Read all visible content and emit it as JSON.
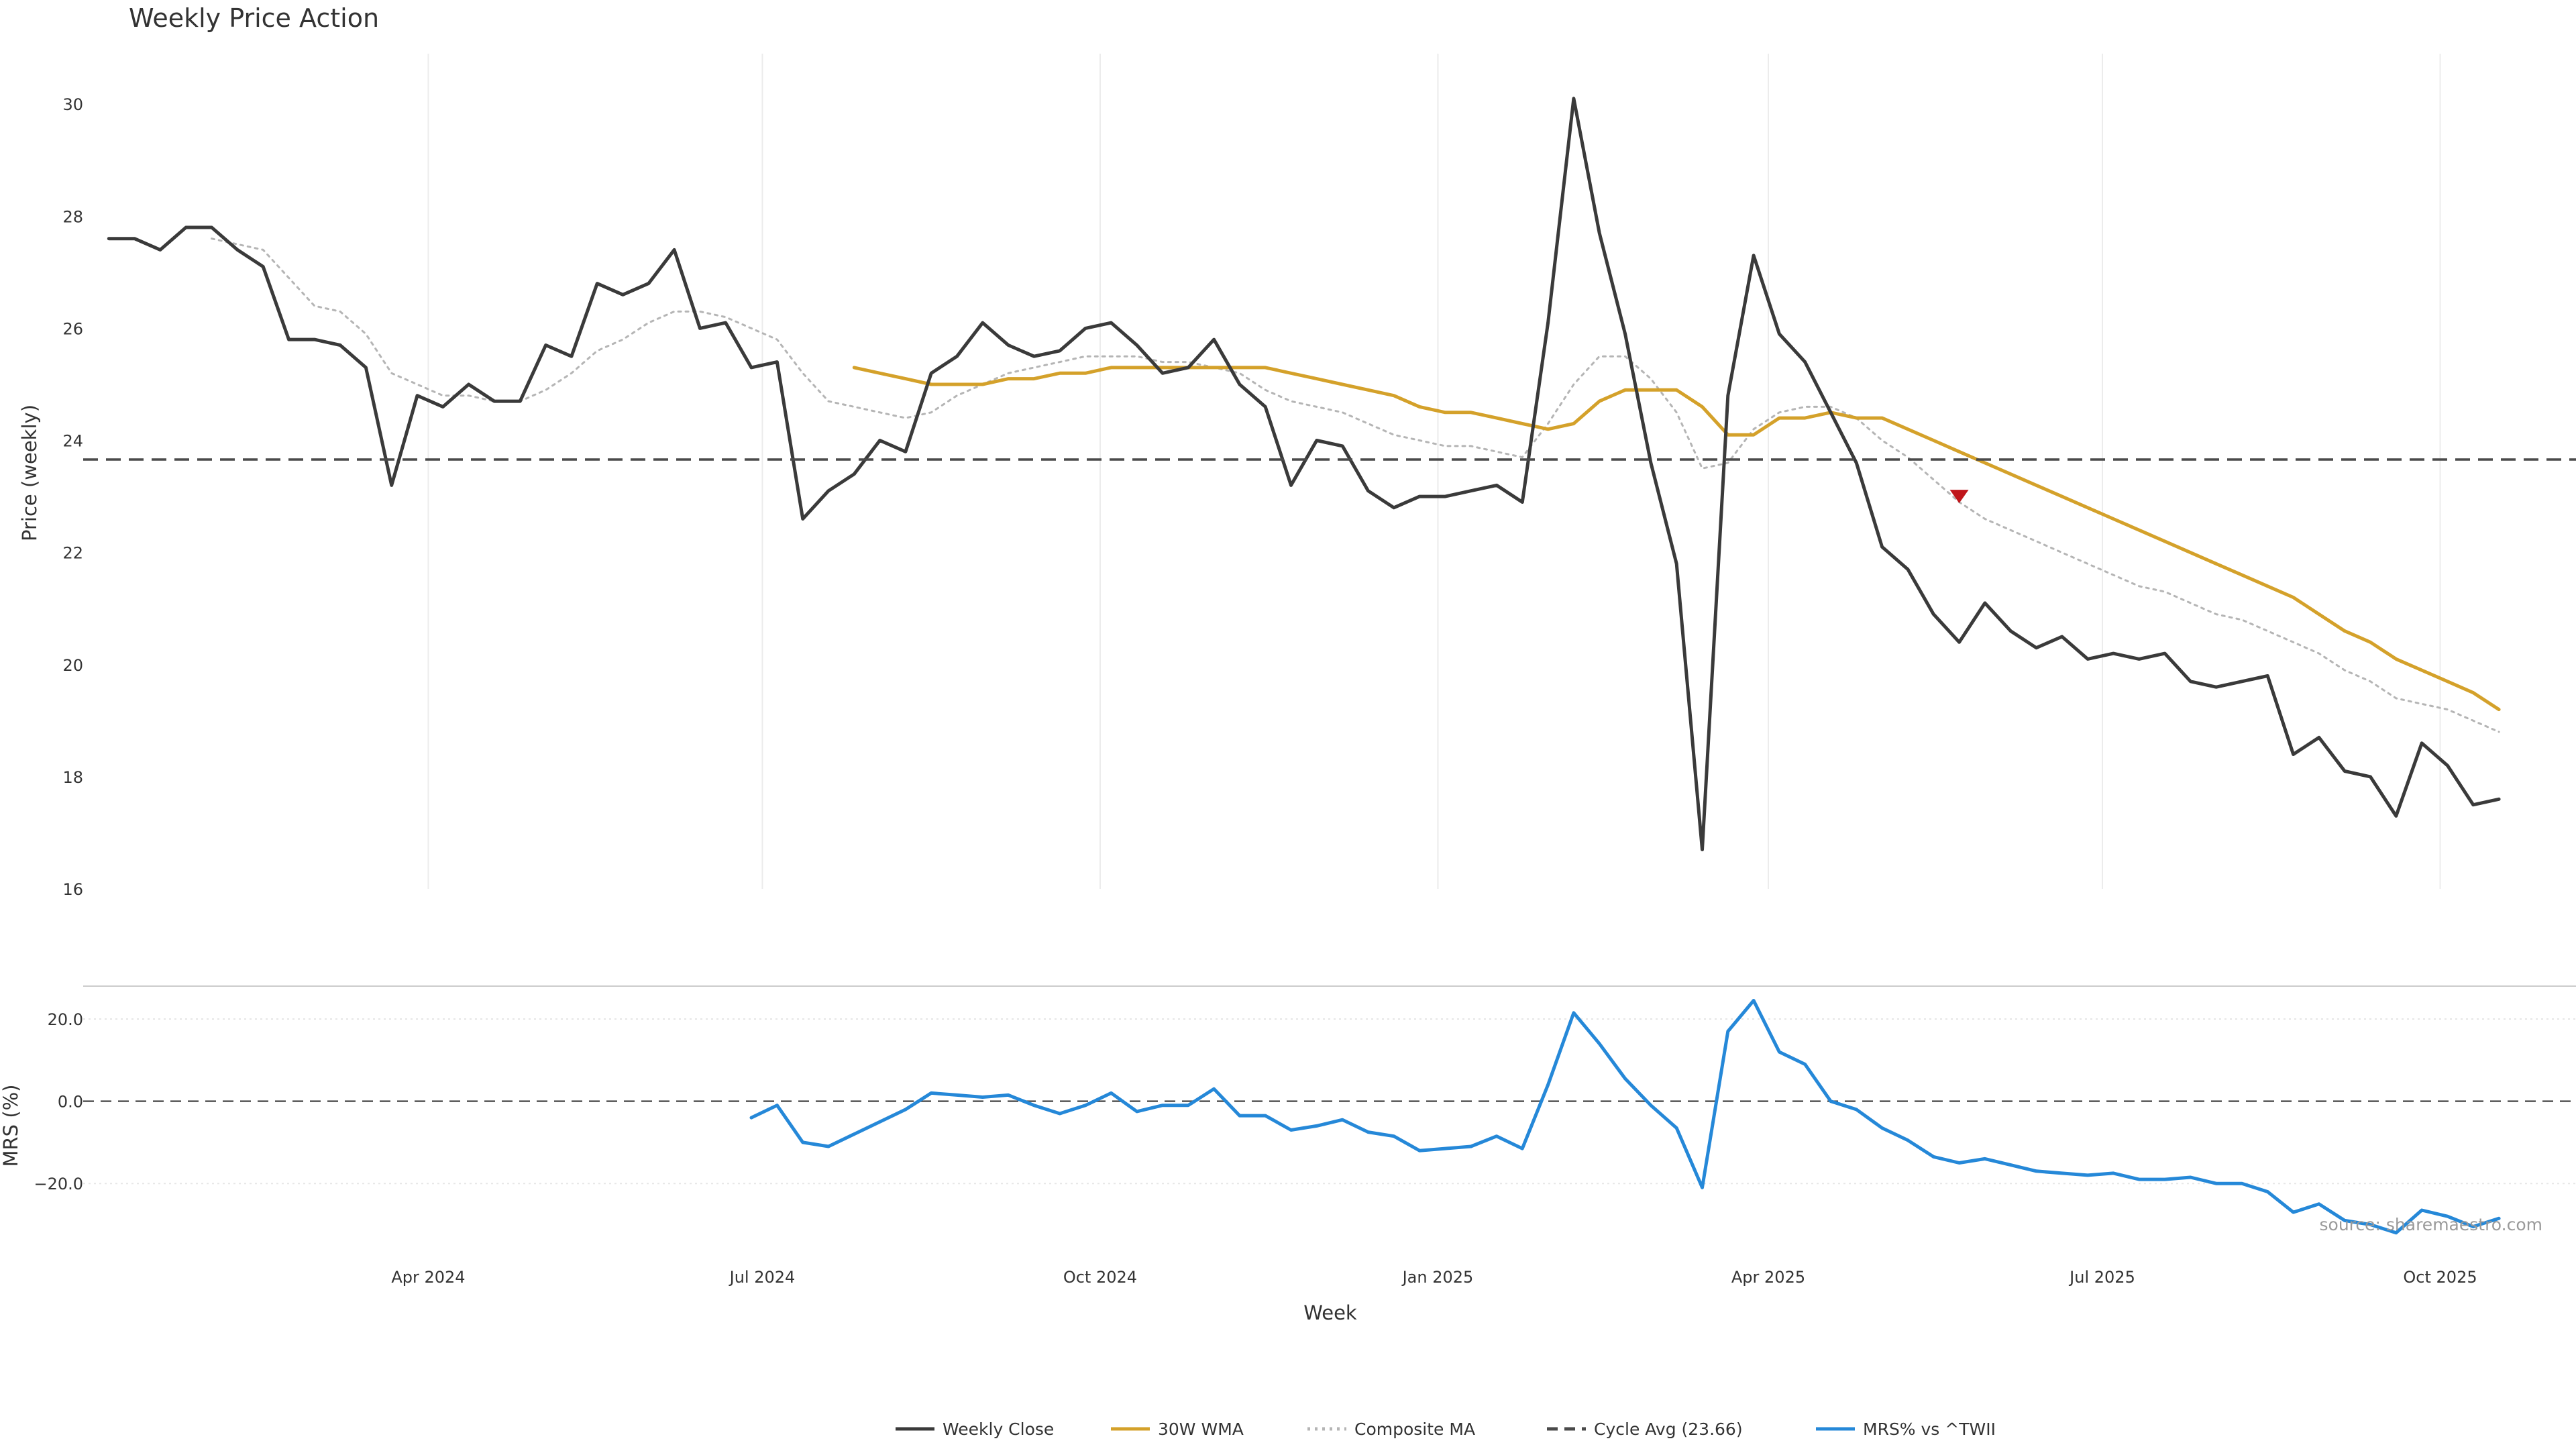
{
  "chart_data": {
    "type": "line",
    "title": "Weekly Price Action",
    "xlabel": "Week",
    "source": "source: sharemaestro.com",
    "x_start": "2024-01-05",
    "x_step_days": 7,
    "x_ticks": [
      {
        "date": "2024-04-01",
        "label": "Apr 2024"
      },
      {
        "date": "2024-07-01",
        "label": "Jul 2024"
      },
      {
        "date": "2024-10-01",
        "label": "Oct 2024"
      },
      {
        "date": "2025-01-01",
        "label": "Jan 2025"
      },
      {
        "date": "2025-04-01",
        "label": "Apr 2025"
      },
      {
        "date": "2025-07-01",
        "label": "Jul 2025"
      },
      {
        "date": "2025-10-01",
        "label": "Oct 2025"
      }
    ],
    "x_range": [
      "2023-12-29",
      "2025-11-07"
    ],
    "price_panel": {
      "ylabel": "Price (weekly)",
      "ylim": [
        16,
        30.9
      ],
      "yticks": [
        16,
        18,
        20,
        22,
        24,
        26,
        28,
        30
      ],
      "grid": "vertical",
      "series": [
        {
          "name": "Weekly Close",
          "color": "#3a3a3a",
          "style": "solid",
          "start_index": 0,
          "values": [
            27.6,
            27.6,
            27.4,
            27.8,
            27.8,
            27.4,
            27.1,
            25.8,
            25.8,
            25.7,
            25.3,
            23.2,
            24.8,
            24.6,
            25.0,
            24.7,
            24.7,
            25.7,
            25.5,
            26.8,
            26.6,
            26.8,
            27.4,
            26.0,
            26.1,
            25.3,
            25.4,
            22.6,
            23.1,
            23.4,
            24.0,
            23.8,
            25.2,
            25.5,
            26.1,
            25.7,
            25.5,
            25.6,
            26.0,
            26.1,
            25.7,
            25.2,
            25.3,
            25.8,
            25.0,
            24.6,
            23.2,
            24.0,
            23.9,
            23.1,
            22.8,
            23.0,
            23.0,
            23.1,
            23.2,
            22.9,
            26.1,
            30.1,
            27.7,
            25.9,
            23.6,
            21.8,
            16.7,
            24.8,
            27.3,
            25.9,
            25.4,
            24.5,
            23.6,
            22.1,
            21.7,
            20.9,
            20.4,
            21.1,
            20.6,
            20.3,
            20.5,
            20.1,
            20.2,
            20.1,
            20.2,
            19.7,
            19.6,
            19.7,
            19.8,
            18.4,
            18.7,
            18.1,
            18.0,
            17.3,
            18.6,
            18.2,
            17.5,
            17.6
          ]
        },
        {
          "name": "30W WMA",
          "color": "#d4a12a",
          "style": "solid",
          "start_index": 29,
          "values": [
            25.3,
            25.2,
            25.1,
            25.0,
            25.0,
            25.0,
            25.1,
            25.1,
            25.2,
            25.2,
            25.3,
            25.3,
            25.3,
            25.3,
            25.3,
            25.3,
            25.3,
            25.2,
            25.1,
            25.0,
            24.9,
            24.8,
            24.6,
            24.5,
            24.5,
            24.4,
            24.3,
            24.2,
            24.3,
            24.7,
            24.9,
            24.9,
            24.9,
            24.6,
            24.1,
            24.1,
            24.4,
            24.4,
            24.5,
            24.4,
            24.4,
            24.2,
            24.0,
            23.8,
            23.6,
            23.4,
            23.2,
            23.0,
            22.8,
            22.6,
            22.4,
            22.2,
            22.0,
            21.8,
            21.6,
            21.4,
            21.2,
            20.9,
            20.6,
            20.4,
            20.1,
            19.9,
            19.7,
            19.5,
            19.2
          ]
        },
        {
          "name": "Composite MA",
          "color": "#b5b5b5",
          "style": "dotted",
          "start_index": 4,
          "values": [
            27.6,
            27.5,
            27.4,
            26.9,
            26.4,
            26.3,
            25.9,
            25.2,
            25.0,
            24.8,
            24.8,
            24.7,
            24.7,
            24.9,
            25.2,
            25.6,
            25.8,
            26.1,
            26.3,
            26.3,
            26.2,
            26.0,
            25.8,
            25.2,
            24.7,
            24.6,
            24.5,
            24.4,
            24.5,
            24.8,
            25.0,
            25.2,
            25.3,
            25.4,
            25.5,
            25.5,
            25.5,
            25.4,
            25.4,
            25.3,
            25.2,
            24.9,
            24.7,
            24.6,
            24.5,
            24.3,
            24.1,
            24.0,
            23.9,
            23.9,
            23.8,
            23.7,
            24.3,
            25.0,
            25.5,
            25.5,
            25.1,
            24.5,
            23.5,
            23.6,
            24.2,
            24.5,
            24.6,
            24.6,
            24.4,
            24.0,
            23.7,
            23.3,
            22.9,
            22.6,
            22.4,
            22.2,
            22.0,
            21.8,
            21.6,
            21.4,
            21.3,
            21.1,
            20.9,
            20.8,
            20.6,
            20.4,
            20.2,
            19.9,
            19.7,
            19.4,
            19.3,
            19.2,
            19.0,
            18.8
          ]
        },
        {
          "name": "Cycle Avg (23.66)",
          "color": "#4a4a4a",
          "style": "dashed",
          "value": 23.66
        }
      ],
      "markers": [
        {
          "type": "triangle-down",
          "color": "#c0161b",
          "index": 72,
          "value": 23.0
        }
      ]
    },
    "mrs_panel": {
      "ylabel": "MRS (%)",
      "ylim": [
        -34,
        28
      ],
      "yticks": [
        {
          "value": 20,
          "label": "20.0"
        },
        {
          "value": 0,
          "label": "0.0"
        },
        {
          "value": -20,
          "label": "−20.0"
        }
      ],
      "zero_line": 0,
      "series": [
        {
          "name": "MRS% vs ^TWII",
          "color": "#2588d8",
          "style": "solid",
          "start_index": 25,
          "values": [
            -4,
            -1,
            -10,
            -11,
            -8,
            -5,
            -2,
            2,
            1.5,
            1,
            1.5,
            -1,
            -3,
            -1,
            2,
            -2.5,
            -1,
            -1,
            3,
            -3.5,
            -3.5,
            -7,
            -6,
            -4.5,
            -7.5,
            -8.5,
            -12,
            -11.5,
            -11,
            -8.5,
            -11.5,
            4,
            21.5,
            14,
            5.5,
            -1,
            -6.5,
            -21,
            17,
            24.5,
            12,
            9,
            0,
            -2,
            -6.5,
            -9.5,
            -13.5,
            -15,
            -14,
            -15.5,
            -17,
            -17.5,
            -18,
            -17.5,
            -19,
            -19,
            -18.5,
            -20,
            -20,
            -22,
            -27,
            -25,
            -29,
            -30,
            -32,
            -26.5,
            -28,
            -30.5,
            -28.5
          ]
        }
      ]
    },
    "legend": {
      "position": "bottom-center",
      "entries": [
        {
          "label": "Weekly Close",
          "color": "#3a3a3a",
          "style": "solid"
        },
        {
          "label": "30W WMA",
          "color": "#d4a12a",
          "style": "solid"
        },
        {
          "label": "Composite MA",
          "color": "#b5b5b5",
          "style": "dotted"
        },
        {
          "label": "Cycle Avg (23.66)",
          "color": "#4a4a4a",
          "style": "dashed"
        },
        {
          "label": "MRS% vs ^TWII",
          "color": "#2588d8",
          "style": "solid"
        }
      ]
    }
  }
}
